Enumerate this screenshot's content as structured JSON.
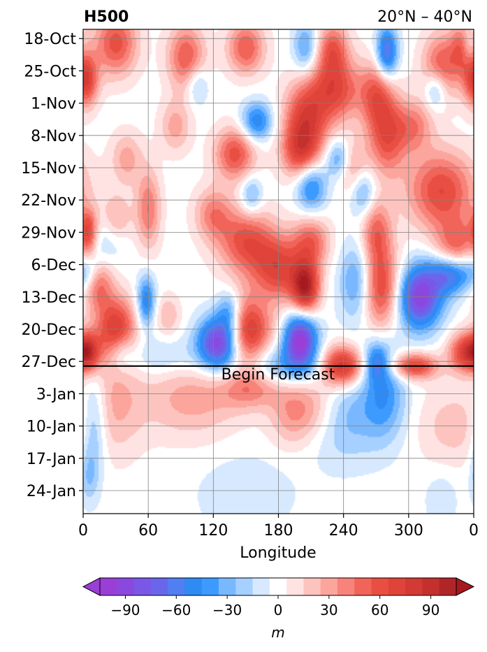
{
  "chart_data": {
    "type": "heatmap",
    "title_left": "H500",
    "title_right": "20°N – 40°N",
    "xlabel": "Longitude",
    "ylabel": "",
    "x_ticks": [
      "0",
      "60",
      "120",
      "180",
      "240",
      "300",
      "0"
    ],
    "x_tick_values": [
      0,
      60,
      120,
      180,
      240,
      300,
      360
    ],
    "xlim": [
      0,
      360
    ],
    "y_ticks": [
      "18-Oct",
      "25-Oct",
      "1-Nov",
      "8-Nov",
      "15-Nov",
      "22-Nov",
      "29-Nov",
      "6-Dec",
      "13-Dec",
      "20-Dec",
      "27-Dec",
      "3-Jan",
      "10-Jan",
      "17-Jan",
      "24-Jan"
    ],
    "ylim_days_top_to_bottom": [
      "16-Oct",
      "29-Jan"
    ],
    "grid": true,
    "annotation": "Begin Forecast",
    "forecast_start": "28-Dec",
    "colorbar": {
      "label": "m",
      "ticks": [
        "−90",
        "−60",
        "−30",
        "0",
        "30",
        "60",
        "90"
      ],
      "tick_values": [
        -90,
        -60,
        -30,
        0,
        30,
        60,
        90
      ],
      "range": [
        -105,
        105
      ],
      "levels": [
        -105,
        -95,
        -85,
        -75,
        -65,
        -55,
        -45,
        -35,
        -25,
        -15,
        -5,
        5,
        15,
        25,
        35,
        45,
        55,
        65,
        75,
        85,
        95,
        105
      ],
      "colors": [
        "#9a3fd6",
        "#8a48df",
        "#7a57e6",
        "#6a66eb",
        "#4f7ff0",
        "#2f8af4",
        "#3d9bff",
        "#79b8ff",
        "#a6d0ff",
        "#d6e9ff",
        "#ffffff",
        "#ffe3e3",
        "#fdc4bf",
        "#fba59c",
        "#f7837a",
        "#f16459",
        "#e84f42",
        "#df4339",
        "#d33a33",
        "#c3302e",
        "#b02528"
      ],
      "extend": "both",
      "extend_colors": [
        "#9a3fd6",
        "#a6191e"
      ]
    },
    "blobs": [
      {
        "lon": 30,
        "date": "19-Oct",
        "value": 60,
        "rlon": 14,
        "rday": 5
      },
      {
        "lon": 2,
        "date": "27-Oct",
        "value": 75,
        "rlon": 8,
        "rday": 4
      },
      {
        "lon": 95,
        "date": "22-Oct",
        "value": 55,
        "rlon": 12,
        "rday": 5
      },
      {
        "lon": 150,
        "date": "20-Oct",
        "value": 55,
        "rlon": 12,
        "rday": 4
      },
      {
        "lon": 230,
        "date": "20-Oct",
        "value": 50,
        "rlon": 10,
        "rday": 4
      },
      {
        "lon": 232,
        "date": "29-Oct",
        "value": 65,
        "rlon": 16,
        "rday": 5
      },
      {
        "lon": 205,
        "date": "5-Nov",
        "value": 70,
        "rlon": 14,
        "rday": 6
      },
      {
        "lon": 200,
        "date": "12-Nov",
        "value": 50,
        "rlon": 12,
        "rday": 4
      },
      {
        "lon": 140,
        "date": "12-Nov",
        "value": 60,
        "rlon": 13,
        "rday": 4
      },
      {
        "lon": 270,
        "date": "30-Oct",
        "value": 50,
        "rlon": 11,
        "rday": 5
      },
      {
        "lon": 280,
        "date": "8-Nov",
        "value": 60,
        "rlon": 12,
        "rday": 6
      },
      {
        "lon": 330,
        "date": "24-Oct",
        "value": 55,
        "rlon": 12,
        "rday": 5
      },
      {
        "lon": 350,
        "date": "20-Oct",
        "value": 50,
        "rlon": 8,
        "rday": 4
      },
      {
        "lon": 330,
        "date": "20-Nov",
        "value": 65,
        "rlon": 22,
        "rday": 6
      },
      {
        "lon": 40,
        "date": "13-Nov",
        "value": 30,
        "rlon": 10,
        "rday": 4
      },
      {
        "lon": 60,
        "date": "24-Nov",
        "value": 45,
        "rlon": 8,
        "rday": 6
      },
      {
        "lon": 30,
        "date": "27-Nov",
        "value": 40,
        "rlon": 10,
        "rday": 4
      },
      {
        "lon": 5,
        "date": "28-Nov",
        "value": 50,
        "rlon": 6,
        "rday": 3
      },
      {
        "lon": 150,
        "date": "1-Dec",
        "value": 60,
        "rlon": 18,
        "rday": 5
      },
      {
        "lon": 180,
        "date": "7-Dec",
        "value": 65,
        "rlon": 16,
        "rday": 5
      },
      {
        "lon": 205,
        "date": "11-Dec",
        "value": 95,
        "rlon": 9,
        "rday": 4
      },
      {
        "lon": 210,
        "date": "1-Dec",
        "value": 50,
        "rlon": 12,
        "rday": 4
      },
      {
        "lon": 272,
        "date": "11-Dec",
        "value": 80,
        "rlon": 14,
        "rday": 6
      },
      {
        "lon": 270,
        "date": "29-Nov",
        "value": 50,
        "rlon": 10,
        "rday": 5
      },
      {
        "lon": 345,
        "date": "2-Dec",
        "value": 50,
        "rlon": 14,
        "rday": 4
      },
      {
        "lon": 30,
        "date": "20-Dec",
        "value": 75,
        "rlon": 13,
        "rday": 5
      },
      {
        "lon": 12,
        "date": "10-Dec",
        "value": 55,
        "rlon": 10,
        "rday": 4
      },
      {
        "lon": 4,
        "date": "25-Dec",
        "value": 80,
        "rlon": 8,
        "rday": 3
      },
      {
        "lon": 78,
        "date": "17-Dec",
        "value": 25,
        "rlon": 8,
        "rday": 3
      },
      {
        "lon": 150,
        "date": "21-Dec",
        "value": 55,
        "rlon": 12,
        "rday": 6
      },
      {
        "lon": 238,
        "date": "28-Dec",
        "value": 95,
        "rlon": 14,
        "rday": 3
      },
      {
        "lon": 305,
        "date": "28-Dec",
        "value": 70,
        "rlon": 15,
        "rday": 2
      },
      {
        "lon": 350,
        "date": "25-Dec",
        "value": 60,
        "rlon": 10,
        "rday": 3
      },
      {
        "lon": 100,
        "date": "4-Jan",
        "value": 30,
        "rlon": 32,
        "rday": 6
      },
      {
        "lon": 30,
        "date": "5-Jan",
        "value": 25,
        "rlon": 18,
        "rday": 8
      },
      {
        "lon": 210,
        "date": "6-Jan",
        "value": 35,
        "rlon": 18,
        "rday": 5
      },
      {
        "lon": 155,
        "date": "2-Jan",
        "value": 35,
        "rlon": 20,
        "rday": 3
      },
      {
        "lon": 340,
        "date": "10-Jan",
        "value": 20,
        "rlon": 22,
        "rday": 6
      },
      {
        "lon": 160,
        "date": "20-Dec",
        "value": 30,
        "rlon": 16,
        "rday": 4
      },
      {
        "lon": 190,
        "date": "8-Jan",
        "value": 20,
        "rlon": 14,
        "rday": 5
      },
      {
        "lon": 305,
        "date": "6-Nov",
        "value": 40,
        "rlon": 12,
        "rday": 4
      },
      {
        "lon": 250,
        "date": "15-Nov",
        "value": 35,
        "rlon": 10,
        "rday": 4
      },
      {
        "lon": 5,
        "date": "3-Dec",
        "value": 40,
        "rlon": 6,
        "rday": 3
      },
      {
        "lon": 120,
        "date": "25-Nov",
        "value": 40,
        "rlon": 12,
        "rday": 4
      },
      {
        "lon": 85,
        "date": "6-Nov",
        "value": 30,
        "rlon": 10,
        "rday": 4
      },
      {
        "lon": 200,
        "date": "22-Dec",
        "value": -100,
        "rlon": 11,
        "rday": 4
      },
      {
        "lon": 125,
        "date": "23-Dec",
        "value": -95,
        "rlon": 14,
        "rday": 4
      },
      {
        "lon": 310,
        "date": "13-Dec",
        "value": -95,
        "rlon": 15,
        "rday": 5
      },
      {
        "lon": 340,
        "date": "8-Dec",
        "value": -65,
        "rlon": 14,
        "rday": 3
      },
      {
        "lon": 255,
        "date": "10-Dec",
        "value": -60,
        "rlon": 12,
        "rday": 6
      },
      {
        "lon": 280,
        "date": "21-Oct",
        "value": -70,
        "rlon": 7,
        "rday": 4
      },
      {
        "lon": 205,
        "date": "20-Oct",
        "value": -40,
        "rlon": 8,
        "rday": 4
      },
      {
        "lon": 160,
        "date": "5-Nov",
        "value": -55,
        "rlon": 10,
        "rday": 3
      },
      {
        "lon": 210,
        "date": "19-Nov",
        "value": -55,
        "rlon": 10,
        "rday": 4
      },
      {
        "lon": 235,
        "date": "13-Nov",
        "value": -40,
        "rlon": 8,
        "rday": 3
      },
      {
        "lon": 258,
        "date": "20-Nov",
        "value": -40,
        "rlon": 8,
        "rday": 4
      },
      {
        "lon": 155,
        "date": "21-Nov",
        "value": -35,
        "rlon": 7,
        "rday": 3
      },
      {
        "lon": 5,
        "date": "6-Dec",
        "value": -55,
        "rlon": 8,
        "rday": 4
      },
      {
        "lon": 25,
        "date": "30-Nov",
        "value": -30,
        "rlon": 12,
        "rday": 4
      },
      {
        "lon": 58,
        "date": "14-Dec",
        "value": -55,
        "rlon": 6,
        "rday": 4
      },
      {
        "lon": 105,
        "date": "28-Oct",
        "value": -30,
        "rlon": 7,
        "rday": 3
      },
      {
        "lon": 325,
        "date": "29-Oct",
        "value": -40,
        "rlon": 7,
        "rday": 3
      },
      {
        "lon": 355,
        "date": "20-Oct",
        "value": -30,
        "rlon": 5,
        "rday": 3
      },
      {
        "lon": 270,
        "date": "27-Dec",
        "value": -45,
        "rlon": 8,
        "rday": 3
      },
      {
        "lon": 278,
        "date": "3-Jan",
        "value": -40,
        "rlon": 14,
        "rday": 7
      },
      {
        "lon": 240,
        "date": "8-Jan",
        "value": -30,
        "rlon": 24,
        "rday": 7
      },
      {
        "lon": 190,
        "date": "28-Dec",
        "value": -35,
        "rlon": 30,
        "rday": 3
      },
      {
        "lon": 70,
        "date": "26-Dec",
        "value": -20,
        "rlon": 28,
        "rday": 3
      },
      {
        "lon": 35,
        "date": "25-Dec",
        "value": -30,
        "rlon": 8,
        "rday": 3
      },
      {
        "lon": 10,
        "date": "10-Jan",
        "value": -35,
        "rlon": 8,
        "rday": 8
      },
      {
        "lon": 150,
        "date": "25-Jan",
        "value": -15,
        "rlon": 30,
        "rday": 6
      },
      {
        "lon": 5,
        "date": "21-Jan",
        "value": -20,
        "rlon": 6,
        "rday": 4
      },
      {
        "lon": 330,
        "date": "26-Jan",
        "value": -15,
        "rlon": 10,
        "rday": 4
      },
      {
        "lon": 135,
        "date": "16-Dec",
        "value": -40,
        "rlon": 8,
        "rday": 3
      }
    ]
  }
}
